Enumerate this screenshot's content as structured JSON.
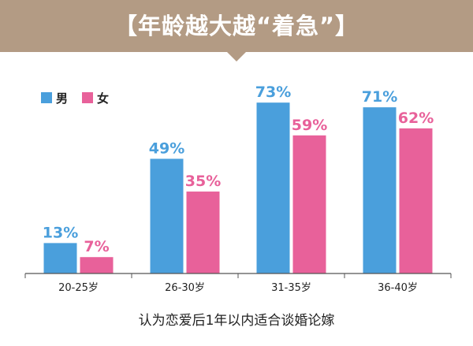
{
  "banner": {
    "title": "【年龄越大越“着急”】"
  },
  "colors": {
    "banner": "#b39b84",
    "male": "#4a9fdc",
    "female": "#e8619a",
    "axis": "#555555"
  },
  "chart_data": {
    "type": "bar",
    "title": "【年龄越大越“着急”】",
    "xlabel": "认为恋爱后1年以内适合谈婚论嫁",
    "ylabel": "",
    "categories": [
      "20-25岁",
      "26-30岁",
      "31-35岁",
      "36-40岁"
    ],
    "series": [
      {
        "name": "男",
        "values": [
          13,
          49,
          73,
          71
        ],
        "labels": [
          "13%",
          "49%",
          "73%",
          "71%"
        ],
        "color": "#4a9fdc"
      },
      {
        "name": "女",
        "values": [
          7,
          35,
          59,
          62
        ],
        "labels": [
          "7%",
          "35%",
          "59%",
          "62%"
        ],
        "color": "#e8619a"
      }
    ],
    "ylim": [
      0,
      80
    ],
    "grid": false,
    "legend": "top-left"
  }
}
